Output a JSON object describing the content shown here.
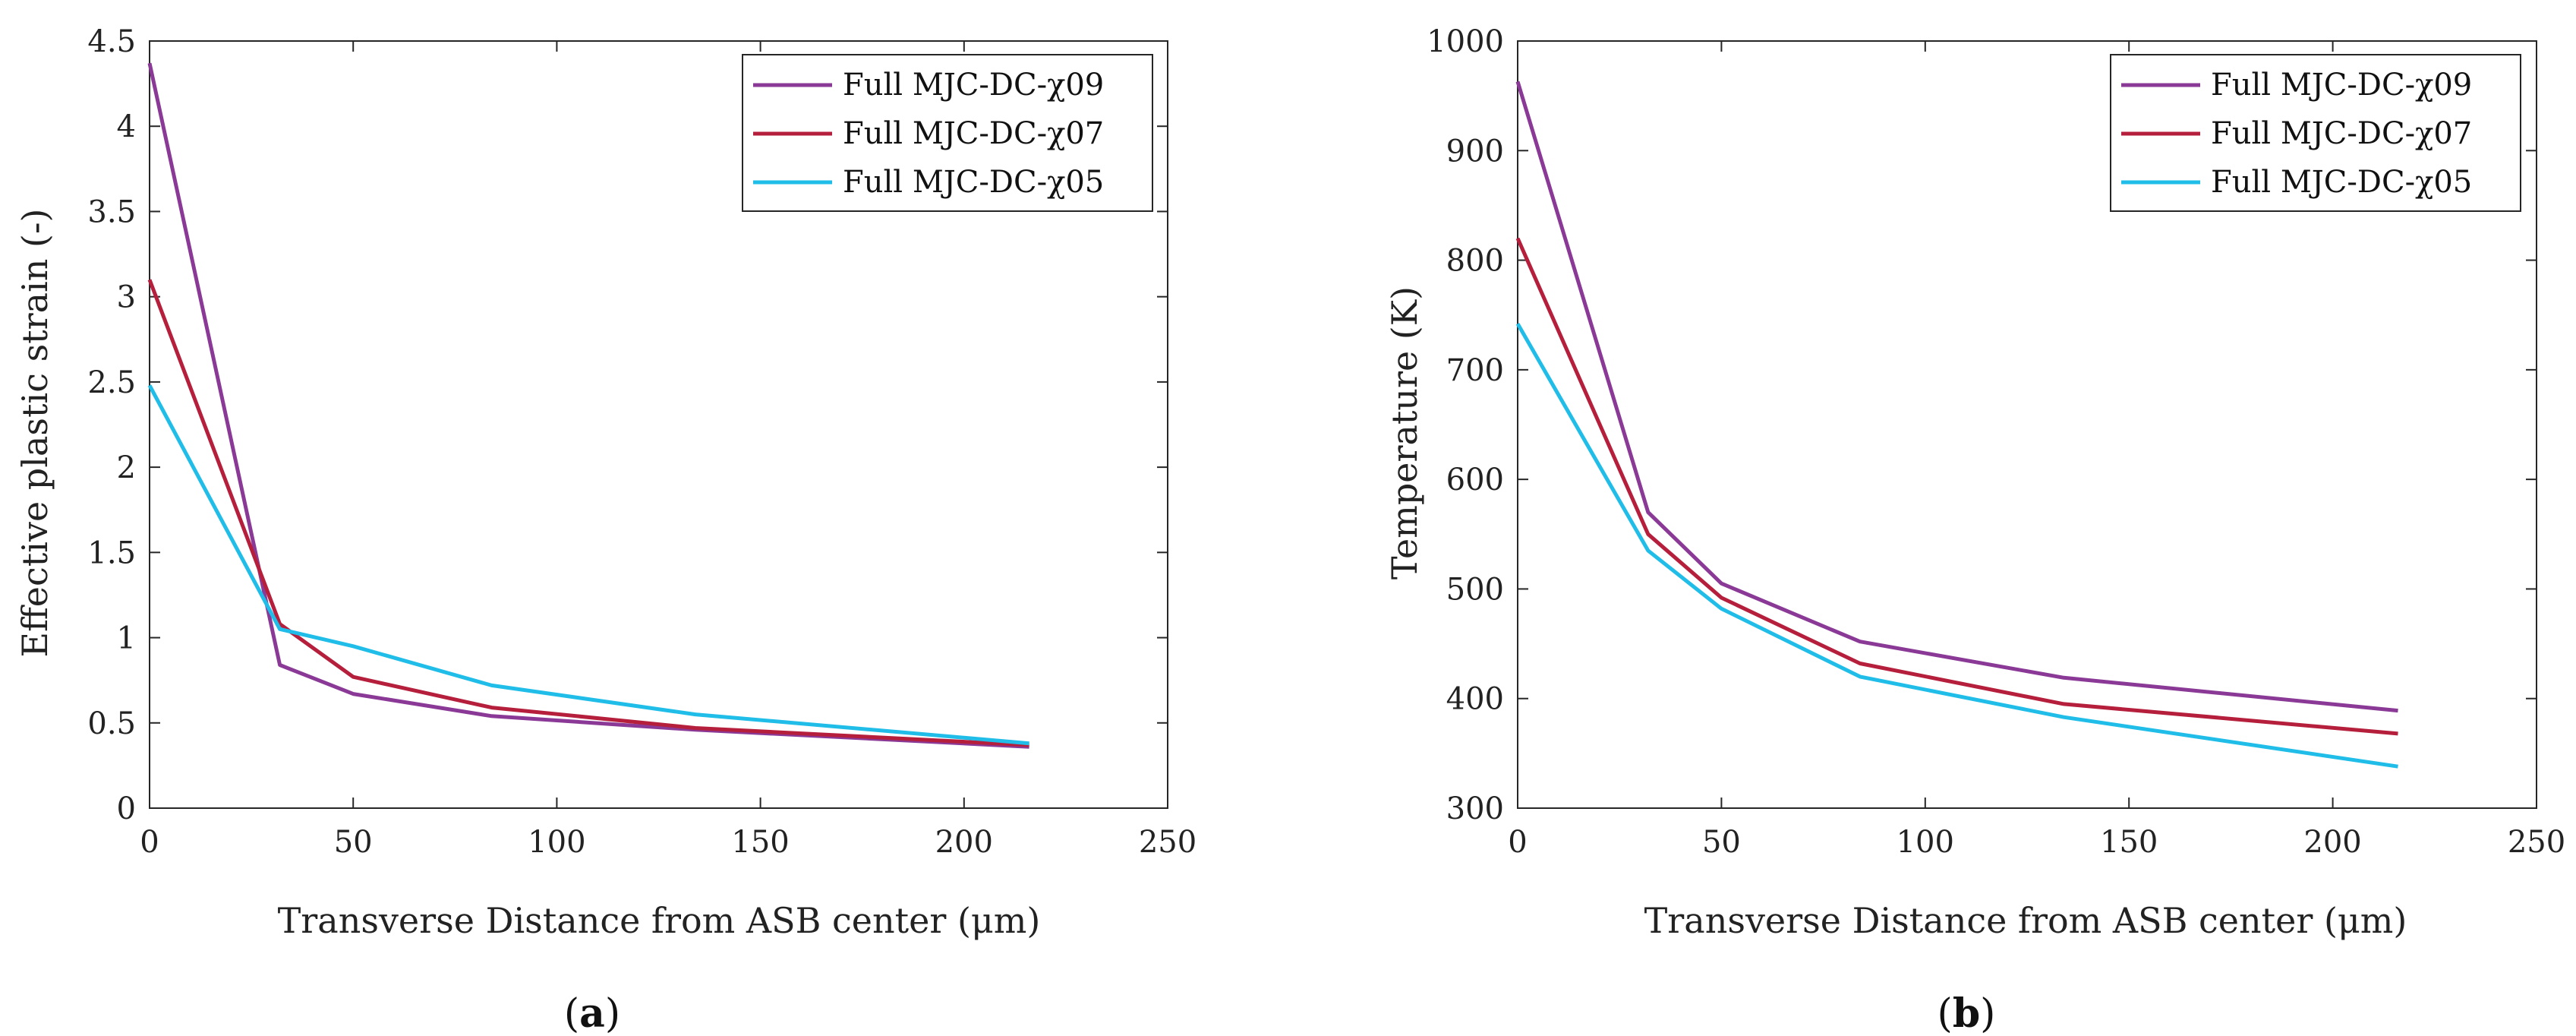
{
  "chart_data": [
    {
      "type": "line",
      "panel_label": "a",
      "xlabel": "Transverse Distance from ASB center (μm)",
      "ylabel": "Effective plastic strain (-)",
      "xlim": [
        0,
        250
      ],
      "ylim": [
        0,
        4.5
      ],
      "xticks": [
        "0",
        "50",
        "100",
        "150",
        "200",
        "250"
      ],
      "yticks": [
        "0",
        "0.5",
        "1",
        "1.5",
        "2",
        "2.5",
        "3",
        "3.5",
        "4",
        "4.5"
      ],
      "legend_position": "top-right",
      "grid": false,
      "series": [
        {
          "name": "Full MJC-DC-χ09",
          "color": "#8a3a96",
          "x": [
            0,
            32,
            50,
            84,
            134,
            216
          ],
          "y": [
            4.37,
            0.84,
            0.67,
            0.54,
            0.46,
            0.36
          ]
        },
        {
          "name": "Full MJC-DC-χ07",
          "color": "#b51f3c",
          "x": [
            0,
            32,
            50,
            84,
            134,
            216
          ],
          "y": [
            3.1,
            1.08,
            0.77,
            0.59,
            0.47,
            0.37
          ]
        },
        {
          "name": "Full MJC-DC-χ05",
          "color": "#1fbde8",
          "x": [
            0,
            32,
            50,
            84,
            134,
            216
          ],
          "y": [
            2.48,
            1.05,
            0.95,
            0.72,
            0.55,
            0.38
          ]
        }
      ]
    },
    {
      "type": "line",
      "panel_label": "b",
      "xlabel": "Transverse Distance from ASB center (μm)",
      "ylabel": "Temperature (K)",
      "xlim": [
        0,
        250
      ],
      "ylim": [
        300,
        1000
      ],
      "xticks": [
        "0",
        "50",
        "100",
        "150",
        "200",
        "250"
      ],
      "yticks": [
        "300",
        "400",
        "500",
        "600",
        "700",
        "800",
        "900",
        "1000"
      ],
      "legend_position": "top-right",
      "grid": false,
      "series": [
        {
          "name": "Full MJC-DC-χ09",
          "color": "#8a3a96",
          "x": [
            0,
            32,
            50,
            84,
            134,
            216
          ],
          "y": [
            963,
            570,
            505,
            452,
            419,
            389
          ]
        },
        {
          "name": "Full MJC-DC-χ07",
          "color": "#b51f3c",
          "x": [
            0,
            32,
            50,
            84,
            134,
            216
          ],
          "y": [
            820,
            550,
            492,
            432,
            395,
            368
          ]
        },
        {
          "name": "Full MJC-DC-χ05",
          "color": "#1fbde8",
          "x": [
            0,
            32,
            50,
            84,
            134,
            216
          ],
          "y": [
            742,
            535,
            482,
            420,
            383,
            338
          ]
        }
      ]
    }
  ]
}
